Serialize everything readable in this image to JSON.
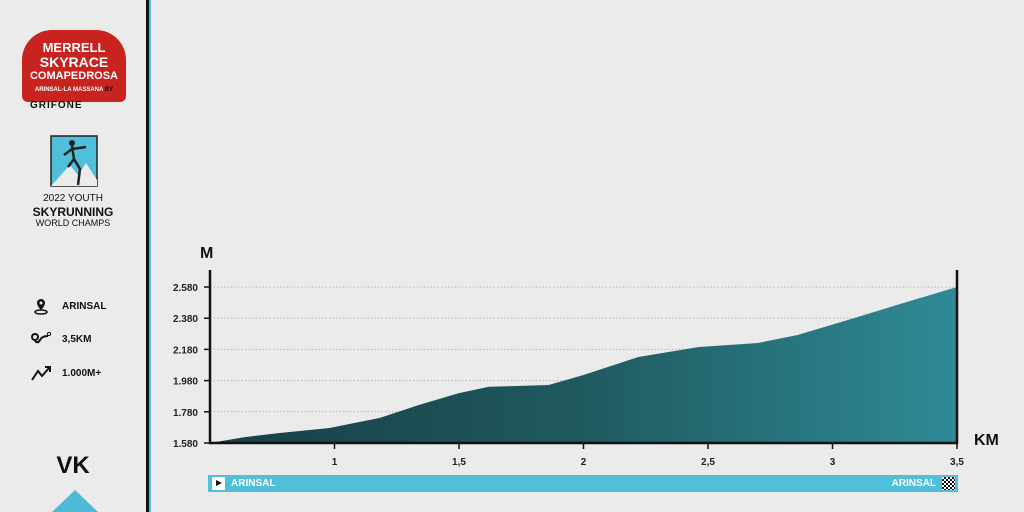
{
  "logos": {
    "merrell": {
      "line1": "MERRELL",
      "line2": "SKYRACE",
      "line3": "COMAPEDROSA",
      "line4": "ARINSAL-LA MASSANA",
      "by": "BY",
      "sponsor": "GRIFONE"
    },
    "championship": {
      "line1": "2022 YOUTH",
      "line2": "SKYRUNNING",
      "line3": "WORLD CHAMPS"
    }
  },
  "info": [
    {
      "icon": "location-pin-icon",
      "label": "ARINSAL"
    },
    {
      "icon": "route-distance-icon",
      "label": "3,5KM"
    },
    {
      "icon": "elevation-gain-icon",
      "label": "1.000M+"
    }
  ],
  "race_code": "VK",
  "colors": {
    "accent": "#4fbfdc",
    "brand_red": "#c8231f",
    "profile": "#1f5a60",
    "background": "#ebebeb"
  },
  "route": {
    "start": "ARINSAL",
    "finish": "ARINSAL",
    "start_icon": "play-icon",
    "finish_icon": "checkered-flag-icon"
  },
  "chart_data": {
    "type": "area",
    "title": "",
    "xlabel": "KM",
    "ylabel": "M",
    "xlim": [
      0.5,
      3.5
    ],
    "ylim": [
      1580,
      2580
    ],
    "x_ticks": [
      1,
      1.5,
      2,
      2.5,
      3,
      3.5
    ],
    "x_tick_labels": [
      "1",
      "1,5",
      "2",
      "2,5",
      "3",
      "3,5"
    ],
    "y_ticks": [
      1580,
      1780,
      1980,
      2180,
      2380,
      2580
    ],
    "y_tick_labels": [
      "1.580",
      "1.780",
      "1.980",
      "2.180",
      "2.380",
      "2.580"
    ],
    "grid": "horizontal dotted",
    "x": [
      0.5,
      0.64,
      0.78,
      0.98,
      1.18,
      1.34,
      1.5,
      1.62,
      1.86,
      2.0,
      2.22,
      2.46,
      2.7,
      2.86,
      3.06,
      3.26,
      3.5
    ],
    "y": [
      1580,
      1618,
      1644,
      1676,
      1740,
      1824,
      1900,
      1940,
      1952,
      2016,
      2131,
      2195,
      2221,
      2272,
      2368,
      2465,
      2580
    ]
  }
}
